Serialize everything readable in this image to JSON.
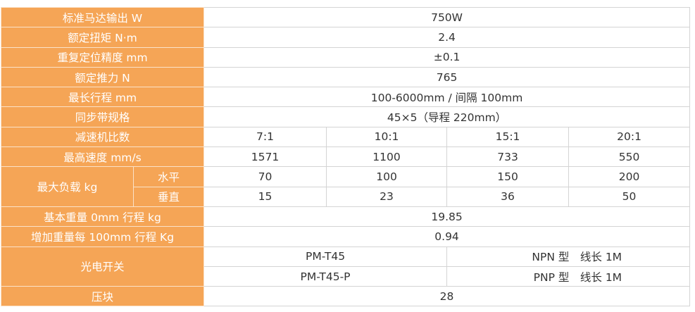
{
  "table": {
    "rows": [
      [
        "标准马达输出 W",
        "750W"
      ],
      [
        "额定扭矩 N·m",
        "2.4"
      ],
      [
        "重复定位精度 mm",
        "±0.1"
      ],
      [
        "额定推力 N",
        "765"
      ],
      [
        "最长行程 mm",
        "100-6000mm / 间隔 100mm"
      ],
      [
        "同步带规格",
        "45×5（导程 220mm）"
      ],
      [
        "减速机比数",
        "7:1",
        "10:1",
        "15:1",
        "20:1"
      ],
      [
        "最高速度 mm/s",
        "1571",
        "1100",
        "733",
        "550"
      ],
      [
        "最大负载 kg",
        "水平",
        "70",
        "100",
        "150",
        "200"
      ],
      [
        "垂直",
        "15",
        "23",
        "36",
        "50"
      ],
      [
        "基本重量 0mm 行程 kg",
        "19.85"
      ],
      [
        "增加重量每 100mm 行程 Kg",
        "0.94"
      ],
      [
        "光电开关",
        "PM-T45",
        "NPN 型　线长 1M"
      ],
      [
        "PM-T45-P",
        "PNP 型　线长 1M"
      ],
      [
        "压块",
        "28"
      ]
    ]
  }
}
